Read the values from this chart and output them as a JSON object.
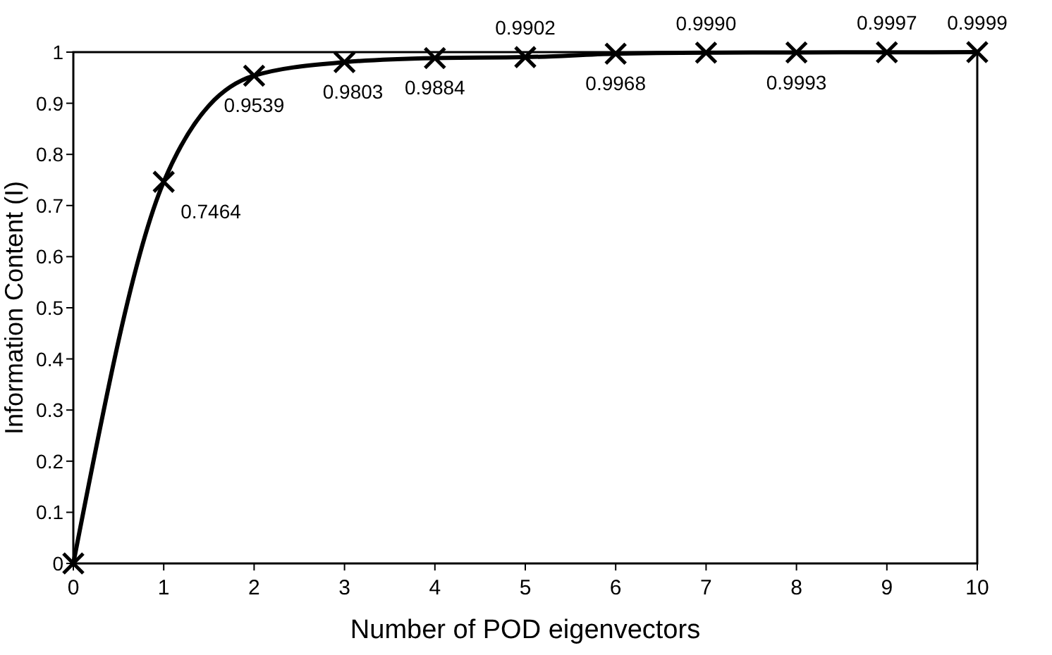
{
  "chart_data": {
    "type": "line",
    "xlabel": "Number of POD eigenvectors",
    "ylabel": "Information Content (I)",
    "x": [
      0,
      1,
      2,
      3,
      4,
      5,
      6,
      7,
      8,
      9,
      10
    ],
    "series": [
      {
        "color": "#000000",
        "values": [
          0,
          0.7464,
          0.9539,
          0.9803,
          0.9884,
          0.9902,
          0.9968,
          0.999,
          0.9993,
          0.9997,
          0.9999
        ]
      }
    ],
    "value_labels": [
      null,
      "0.7464",
      "0.9539",
      "0.9803",
      "0.9884",
      "0.9902",
      "0.9968",
      "0.9990",
      "0.9993",
      "0.9997",
      "0.9999"
    ],
    "xlim": [
      0,
      10
    ],
    "xticks": [
      0,
      1,
      2,
      3,
      4,
      5,
      6,
      7,
      8,
      9,
      10
    ],
    "ylim": [
      0,
      1
    ],
    "yticks": [
      0,
      0.1,
      0.2,
      0.3,
      0.4,
      0.5,
      0.6,
      0.7,
      0.8,
      0.9,
      1
    ],
    "marker": "cross",
    "line_style": "solid",
    "grid": false
  }
}
